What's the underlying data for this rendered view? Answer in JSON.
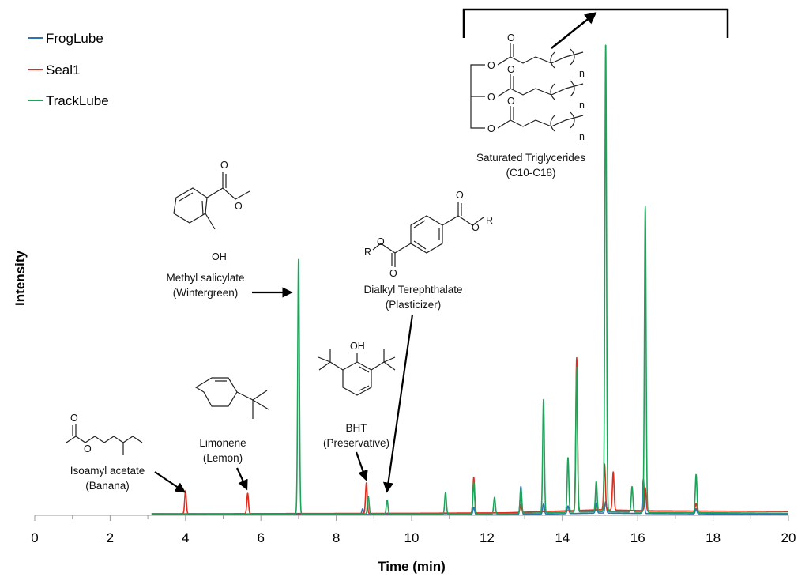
{
  "chart_data": {
    "type": "line",
    "title": "",
    "xlabel": "Time (min)",
    "ylabel": "Intensity",
    "xlim": [
      0,
      20
    ],
    "ylim": [
      0,
      100
    ],
    "xticks": [
      0,
      2,
      4,
      6,
      8,
      10,
      12,
      14,
      16,
      18,
      20
    ],
    "grid": false,
    "legend_position": "top-left",
    "start_time": 3.1,
    "series": [
      {
        "name": "FrogLube",
        "color": "#2E74B5",
        "baseline": [
          [
            3.1,
            0.6
          ],
          [
            10,
            0.3
          ],
          [
            12.5,
            0.2
          ],
          [
            13.5,
            0.5
          ],
          [
            15,
            0.9
          ],
          [
            16.3,
            0.7
          ],
          [
            20,
            0.4
          ]
        ],
        "peaks": [
          [
            8.7,
            2.2
          ],
          [
            11.65,
            3.0
          ],
          [
            12.9,
            11.0
          ],
          [
            13.5,
            4.0
          ],
          [
            14.15,
            3.0
          ],
          [
            14.9,
            4.0
          ],
          [
            15.15,
            4.5
          ],
          [
            16.15,
            13.5
          ],
          [
            17.55,
            2.0
          ]
        ]
      },
      {
        "name": "Seal1",
        "color": "#E32B1E",
        "baseline": [
          [
            3.1,
            0.6
          ],
          [
            10,
            0.8
          ],
          [
            12.5,
            1.0
          ],
          [
            13.5,
            1.5
          ],
          [
            15,
            2.2
          ],
          [
            16.3,
            1.8
          ],
          [
            20,
            1.5
          ]
        ],
        "peaks": [
          [
            4.0,
            9.0
          ],
          [
            5.65,
            8.0
          ],
          [
            8.8,
            12.0
          ],
          [
            11.65,
            14.0
          ],
          [
            12.9,
            3.0
          ],
          [
            14.38,
            60.0
          ],
          [
            15.12,
            18.0
          ],
          [
            15.35,
            15.0
          ],
          [
            16.2,
            9.0
          ],
          [
            17.55,
            3.0
          ]
        ]
      },
      {
        "name": "TrackLube",
        "color": "#1DA35A",
        "baseline": [
          [
            3.1,
            0.6
          ],
          [
            10,
            0.5
          ],
          [
            12.5,
            0.6
          ],
          [
            13.5,
            1.0
          ],
          [
            15,
            1.5
          ],
          [
            16.3,
            1.2
          ],
          [
            20,
            0.8
          ]
        ],
        "peaks": [
          [
            7.0,
            100.0
          ],
          [
            8.85,
            7.0
          ],
          [
            9.35,
            5.5
          ],
          [
            10.9,
            8.5
          ],
          [
            11.65,
            12.5
          ],
          [
            12.2,
            6.5
          ],
          [
            12.9,
            9.5
          ],
          [
            13.5,
            44.5
          ],
          [
            14.15,
            21.5
          ],
          [
            14.38,
            57.0
          ],
          [
            14.9,
            12.0
          ],
          [
            15.15,
            184.0
          ],
          [
            15.85,
            10.0
          ],
          [
            16.2,
            120.0
          ],
          [
            17.55,
            15.0
          ]
        ]
      }
    ],
    "annotations": [
      {
        "line1": "Isoamyl acetate",
        "line2": "(Banana)"
      },
      {
        "line1": "Limonene",
        "line2": "(Lemon)"
      },
      {
        "line1": "Methyl salicylate",
        "line2": "(Wintergreen)"
      },
      {
        "line1": "BHT",
        "line2": "(Preservative)"
      },
      {
        "line1": "Dialkyl Terephthalate",
        "line2": "(Plasticizer)"
      },
      {
        "line1": "Saturated Triglycerides",
        "line2": "(C10-C18)"
      }
    ],
    "structure_labels": {
      "hydroxyl": "OH",
      "oxygen": "O",
      "alkyl": "R",
      "repeat": "n"
    }
  }
}
